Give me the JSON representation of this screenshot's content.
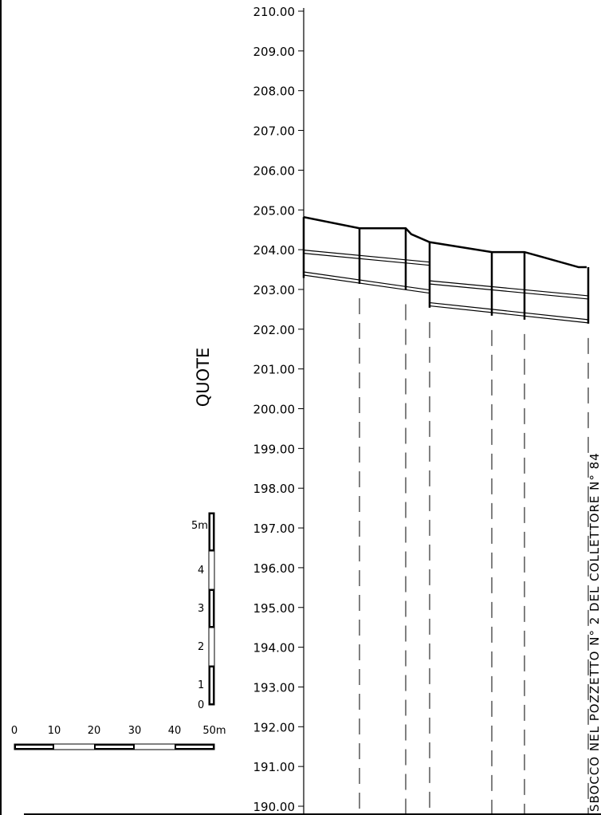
{
  "profile": {
    "axis_title": "QUOTE",
    "y_axis": {
      "min": 190,
      "max": 210,
      "ticks": [
        "210.00",
        "209.00",
        "208.00",
        "207.00",
        "206.00",
        "205.00",
        "204.00",
        "203.00",
        "202.00",
        "201.00",
        "200.00",
        "199.00",
        "198.00",
        "197.00",
        "196.00",
        "195.00",
        "194.00",
        "193.00",
        "192.00",
        "191.00",
        "190.00"
      ]
    },
    "vertical_note": "SBOCCO NEL POZZETTO N° 2 DEL COLLETTORE N° 84",
    "ground_line": [
      [
        0,
        204.88
      ],
      [
        70,
        204.6
      ],
      [
        128,
        204.6
      ],
      [
        135,
        204.45
      ],
      [
        158,
        204.25
      ],
      [
        236,
        204.0
      ],
      [
        277,
        204.0
      ],
      [
        295,
        203.9
      ],
      [
        345,
        203.62
      ],
      [
        355,
        203.62
      ]
    ],
    "sections": [
      {
        "x": 0,
        "top": 204.88,
        "bottom": 203.35
      },
      {
        "x": 70,
        "top": 204.6,
        "bottom": 203.2
      },
      {
        "x": 128,
        "top": 204.6,
        "bottom": 203.05
      },
      {
        "x": 158,
        "top": 204.25,
        "bottom": 202.6
      },
      {
        "x": 236,
        "top": 204.0,
        "bottom": 202.4
      },
      {
        "x": 277,
        "top": 204.0,
        "bottom": 202.3
      },
      {
        "x": 357,
        "top": 203.62,
        "bottom": 202.2
      }
    ],
    "pipe_upper_segments": [
      {
        "x1": 0,
        "y1": 204.05,
        "x2": 157,
        "y2": 203.75
      },
      {
        "x1": 157,
        "y1": 203.28,
        "x2": 357,
        "y2": 202.9
      }
    ],
    "pipe_lower_segments": [
      {
        "x1": 0,
        "y1": 203.5,
        "x2": 157,
        "y2": 203.05
      },
      {
        "x1": 157,
        "y1": 202.73,
        "x2": 357,
        "y2": 202.3
      }
    ]
  },
  "vertical_scale": {
    "labels": [
      "5m",
      "4",
      "3",
      "2",
      "1",
      "0"
    ]
  },
  "horizontal_scale": {
    "labels": [
      "0",
      "10",
      "20",
      "30",
      "40",
      "50m"
    ]
  }
}
